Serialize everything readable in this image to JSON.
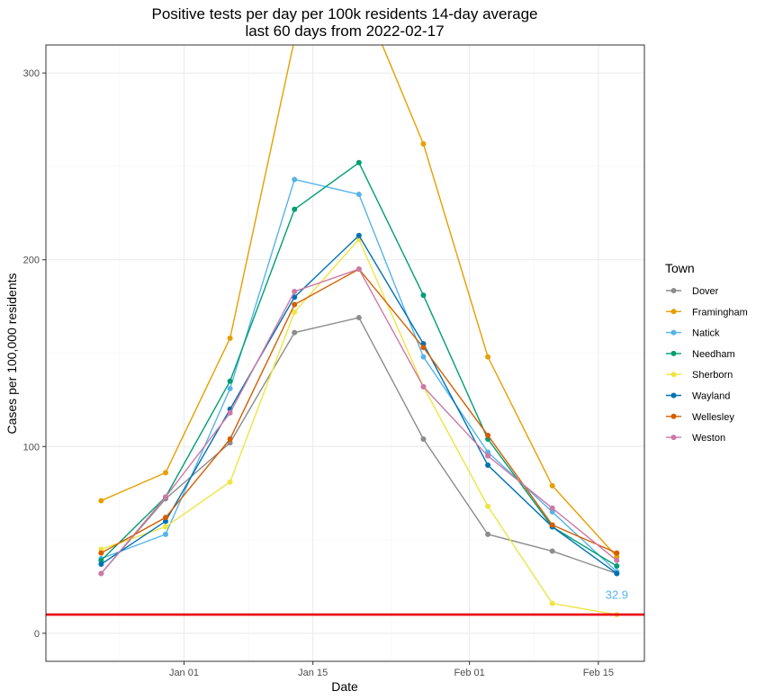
{
  "chart_data": {
    "type": "line",
    "title": "Positive tests per day per 100k residents 14-day average",
    "subtitle": "last 60 days from 2022-02-17",
    "xlabel": "Date",
    "ylabel": "Cases per 100,000 residents",
    "x_type": "date",
    "xlim": [
      "2021-12-17",
      "2022-02-20"
    ],
    "ylim": [
      -15,
      315
    ],
    "x_ticks": [
      {
        "date": "2022-01-01",
        "label": "Jan 01"
      },
      {
        "date": "2022-01-15",
        "label": "Jan 15"
      },
      {
        "date": "2022-02-01",
        "label": "Feb 01"
      },
      {
        "date": "2022-02-15",
        "label": "Feb 15"
      }
    ],
    "y_ticks": [
      0,
      100,
      200,
      300
    ],
    "grid": true,
    "x": [
      "2021-12-23",
      "2021-12-30",
      "2022-01-06",
      "2022-01-13",
      "2022-01-20",
      "2022-01-27",
      "2022-02-03",
      "2022-02-10",
      "2022-02-17"
    ],
    "reference_line": {
      "y": 10,
      "color": "#e8000b"
    },
    "annotation": {
      "text": "32.9",
      "x": "2022-02-17",
      "y": 21,
      "color": "#56b4e9"
    },
    "legend": {
      "title": "Town",
      "position": "right"
    },
    "series": [
      {
        "name": "Dover",
        "color": "#8c8c8c",
        "values": [
          32,
          72,
          102,
          161,
          169,
          104,
          53,
          44,
          32
        ]
      },
      {
        "name": "Framingham",
        "color": "#e69f00",
        "values": [
          71,
          86,
          158,
          318,
          345,
          262,
          148,
          79,
          41
        ]
      },
      {
        "name": "Natick",
        "color": "#56b4e9",
        "values": [
          40,
          53,
          131,
          243,
          235,
          148,
          97,
          65,
          33
        ]
      },
      {
        "name": "Needham",
        "color": "#009e73",
        "values": [
          39,
          73,
          135,
          227,
          252,
          181,
          104,
          57,
          36
        ]
      },
      {
        "name": "Sherborn",
        "color": "#f0e442",
        "values": [
          45,
          57,
          81,
          172,
          211,
          132,
          68,
          16,
          10
        ]
      },
      {
        "name": "Wayland",
        "color": "#0072b2",
        "values": [
          37,
          60,
          120,
          180,
          213,
          155,
          90,
          57,
          32
        ]
      },
      {
        "name": "Wellesley",
        "color": "#d55e00",
        "values": [
          43,
          62,
          104,
          176,
          195,
          153,
          106,
          58,
          43
        ]
      },
      {
        "name": "Weston",
        "color": "#cc79a7",
        "values": [
          32,
          73,
          118,
          183,
          195,
          132,
          95,
          67,
          39
        ]
      }
    ]
  }
}
